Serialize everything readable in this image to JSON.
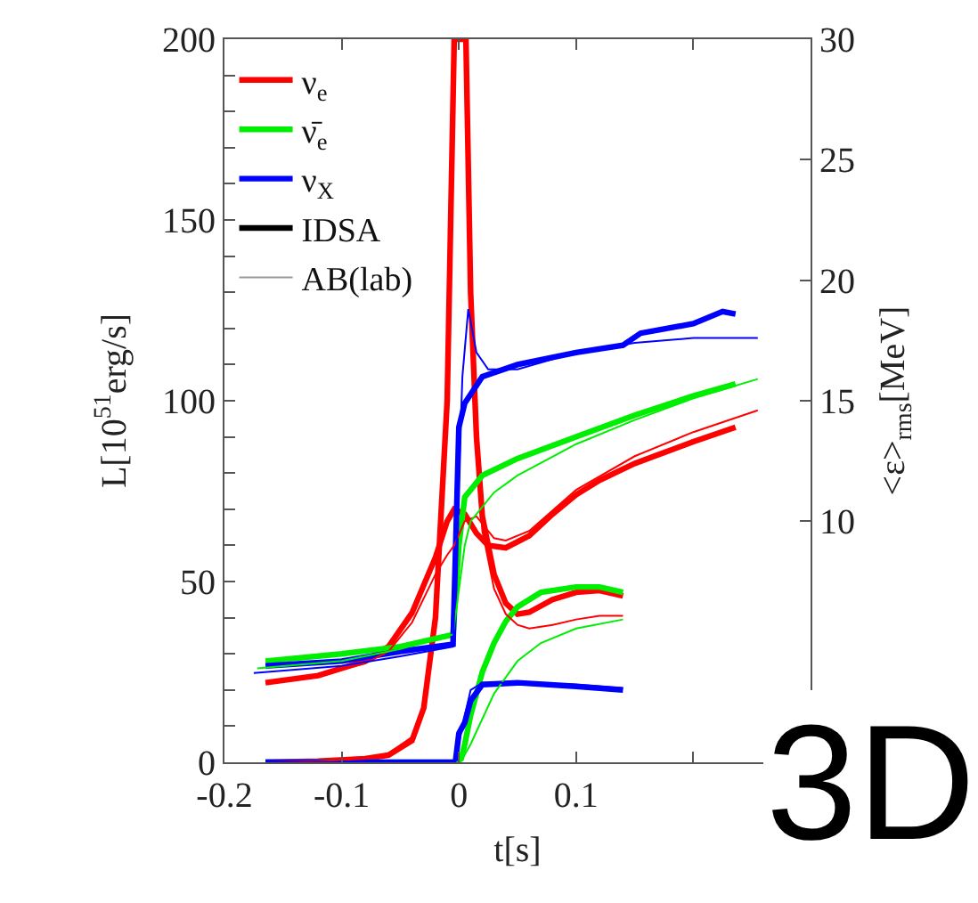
{
  "chart_data": {
    "type": "line",
    "xlabel": "t[s]",
    "ylabel": "L[10$^{51}$erg/s]",
    "y2label": "<ε>$_{rms}$[MeV]",
    "xlim": [
      -0.2,
      0.3
    ],
    "xticks": [
      -0.2,
      -0.1,
      0,
      0.1,
      {
        "value": 0.2,
        "label": null
      }
    ],
    "ylim": [
      0,
      200
    ],
    "yticks": [
      0,
      {
        "value": 10,
        "label": null
      },
      {
        "value": 20,
        "label": null
      },
      {
        "value": 30,
        "label": null
      },
      {
        "value": 40,
        "label": null
      },
      50,
      {
        "value": 60,
        "label": null
      },
      {
        "value": 70,
        "label": null
      },
      {
        "value": 80,
        "label": null
      },
      {
        "value": 90,
        "label": null
      },
      100,
      {
        "value": 110,
        "label": null
      },
      {
        "value": 120,
        "label": null
      },
      {
        "value": 130,
        "label": null
      },
      {
        "value": 140,
        "label": null
      },
      150,
      {
        "value": 160,
        "label": null
      },
      {
        "value": 170,
        "label": null
      },
      {
        "value": 180,
        "label": null
      },
      {
        "value": 190,
        "label": null
      },
      200
    ],
    "y2lim": [
      0,
      30
    ],
    "y2ticks": [
      10,
      15,
      20,
      25,
      30
    ],
    "legend": "top left",
    "line_style": "solid",
    "marker": "none",
    "annotations": [
      "3D"
    ],
    "series": [
      {
        "name": "IDSA",
        "color": "#000000"
      },
      {
        "name": "ν$_{e}$",
        "color": "#ff0000",
        "x": [
          -0.165,
          -0.12,
          -0.08,
          -0.06,
          -0.04,
          -0.03,
          -0.02,
          -0.01,
          -0.004,
          0.006,
          0.01,
          0.015,
          0.02,
          0.03,
          0.04,
          0.05,
          0.06,
          0.08,
          0.1,
          0.12,
          0.14
        ],
        "values": [
          0,
          0.3,
          1,
          2,
          6,
          15,
          40,
          100,
          200,
          200,
          130,
          90,
          68,
          52,
          44,
          41,
          41.5,
          45,
          47,
          47.5,
          46
        ]
      },
      {
        "name": "ν̄$_{e}$",
        "color": "#00ee00",
        "x": [
          -0.165,
          -0.05,
          -0.002,
          0.002,
          0.005,
          0.01,
          0.02,
          0.03,
          0.04,
          0.05,
          0.07,
          0.1,
          0.12,
          0.14
        ],
        "values": [
          0,
          0,
          0,
          1,
          5,
          13,
          25,
          33,
          39,
          43,
          47,
          48.5,
          48.5,
          47
        ]
      },
      {
        "name": "ν$_{X}$",
        "color": "#0000ff",
        "x": [
          -0.165,
          -0.003,
          0.0,
          0.005,
          0.01,
          0.02,
          0.05,
          0.1,
          0.14
        ],
        "values": [
          0,
          0,
          8,
          11,
          17,
          21.5,
          22,
          21,
          20
        ]
      },
      {
        "axis": "y2",
        "color": "#ff0000",
        "x": [
          -0.165,
          -0.12,
          -0.08,
          -0.06,
          -0.04,
          -0.02,
          -0.01,
          -0.004,
          0.005,
          0.015,
          0.025,
          0.04,
          0.06,
          0.08,
          0.1,
          0.12,
          0.15,
          0.2,
          0.236
        ],
        "values": [
          3.3,
          3.6,
          4.2,
          4.8,
          6.2,
          8.5,
          10,
          10.5,
          10.3,
          9.5,
          9.0,
          8.9,
          9.4,
          10.3,
          11.1,
          11.7,
          12.4,
          13.3,
          13.9
        ]
      },
      {
        "axis": "y2",
        "color": "#00ee00",
        "x": [
          -0.165,
          -0.1,
          -0.05,
          -0.005,
          0.0,
          0.005,
          0.02,
          0.05,
          0.1,
          0.15,
          0.2,
          0.236
        ],
        "values": [
          4.2,
          4.5,
          4.8,
          5.3,
          9.0,
          11.0,
          11.9,
          12.6,
          13.5,
          14.4,
          15.2,
          15.7
        ]
      },
      {
        "axis": "y2",
        "color": "#0000ff",
        "x": [
          -0.165,
          -0.1,
          -0.05,
          -0.005,
          0.0,
          0.005,
          0.02,
          0.05,
          0.1,
          0.14,
          0.155,
          0.2,
          0.225,
          0.236
        ],
        "values": [
          4.0,
          4.2,
          4.6,
          4.9,
          13.9,
          14.9,
          16.0,
          16.5,
          17.0,
          17.3,
          17.8,
          18.2,
          18.7,
          18.6
        ]
      },
      {
        "name": "AB(lab)",
        "color": "#999999"
      },
      {
        "color": "#ff0000",
        "x": [
          -0.165,
          -0.12,
          -0.08,
          -0.06,
          -0.04,
          -0.03,
          -0.02,
          -0.01,
          -0.004,
          0.006,
          0.01,
          0.015,
          0.02,
          0.03,
          0.04,
          0.05,
          0.06,
          0.08,
          0.1,
          0.12,
          0.14
        ],
        "values": [
          0,
          0.3,
          1,
          2.5,
          7,
          16,
          42,
          105,
          200,
          200,
          125,
          85,
          64,
          48,
          41,
          38,
          37,
          38,
          39.5,
          40.5,
          40.5
        ]
      },
      {
        "color": "#00ee00",
        "x": [
          -0.165,
          -0.002,
          0.003,
          0.01,
          0.02,
          0.03,
          0.05,
          0.07,
          0.1,
          0.14
        ],
        "values": [
          0,
          0,
          1,
          5,
          12,
          19,
          28,
          33,
          37,
          39.5
        ]
      },
      {
        "color": "#0000ff",
        "x": [
          -0.165,
          -0.003,
          0.003,
          0.01,
          0.02,
          0.05,
          0.1,
          0.14
        ],
        "values": [
          0,
          0,
          10,
          20,
          22,
          22,
          21.5,
          20.5
        ]
      },
      {
        "axis": "y2",
        "color": "#ff0000",
        "x": [
          -0.165,
          -0.12,
          -0.08,
          -0.06,
          -0.04,
          -0.02,
          -0.01,
          -0.004,
          0.005,
          0.015,
          0.03,
          0.04,
          0.06,
          0.1,
          0.15,
          0.2,
          0.255
        ],
        "values": [
          3.3,
          3.6,
          4.1,
          4.6,
          5.8,
          7.8,
          8.6,
          9.0,
          10.0,
          10.2,
          9.3,
          9.2,
          9.6,
          11.3,
          12.7,
          13.7,
          14.6
        ]
      },
      {
        "axis": "y2",
        "color": "#00ee00",
        "x": [
          -0.172,
          -0.1,
          -0.05,
          -0.005,
          0.005,
          0.01,
          0.03,
          0.05,
          0.1,
          0.15,
          0.2,
          0.255
        ],
        "values": [
          3.9,
          4.2,
          4.7,
          5.3,
          9.0,
          10.0,
          11.2,
          11.9,
          13.2,
          14.2,
          15.1,
          15.9
        ]
      },
      {
        "axis": "y2",
        "color": "#0000ff",
        "x": [
          -0.175,
          -0.1,
          -0.05,
          -0.005,
          0.003,
          0.008,
          0.015,
          0.025,
          0.05,
          0.1,
          0.15,
          0.2,
          0.255
        ],
        "values": [
          3.7,
          4.0,
          4.4,
          4.8,
          16.0,
          18.8,
          17.0,
          16.3,
          16.3,
          17.0,
          17.4,
          17.6,
          17.6
        ]
      }
    ]
  }
}
